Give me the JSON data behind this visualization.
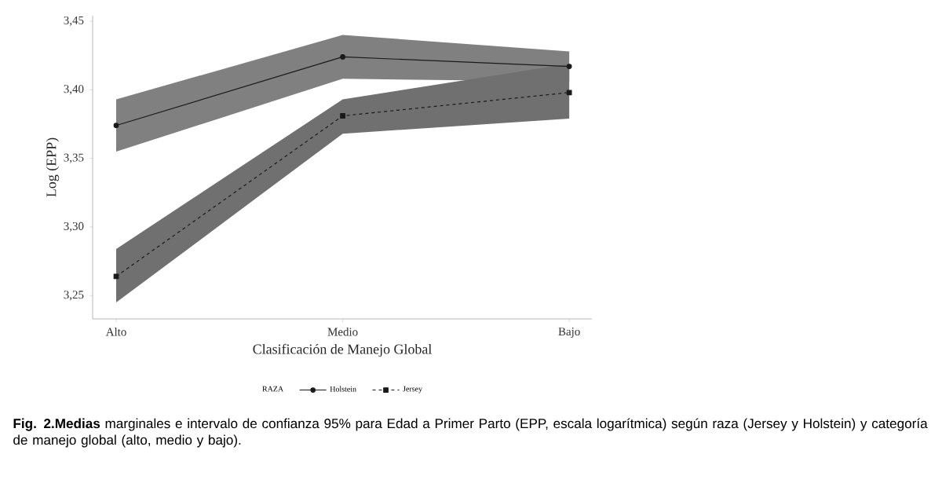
{
  "chart_data": {
    "type": "line",
    "xlabel": "Clasificación de Manejo Global",
    "ylabel": "Log (EPP)",
    "categories": [
      "Alto",
      "Medio",
      "Bajo"
    ],
    "ylim": [
      3.233,
      3.454
    ],
    "yticks": [
      {
        "value": 3.25,
        "label": "3,25"
      },
      {
        "value": 3.3,
        "label": "3,30"
      },
      {
        "value": 3.35,
        "label": "3,35"
      },
      {
        "value": 3.4,
        "label": "3,40"
      },
      {
        "value": 3.45,
        "label": "3,45"
      }
    ],
    "legend": "bottom",
    "legend_title": "RAZA",
    "grid": false,
    "series": [
      {
        "name": "Holstein",
        "color": "#1a1a1a",
        "marker": "circle",
        "line_style": "solid",
        "values": [
          3.374,
          3.424,
          3.417
        ],
        "lower": [
          3.355,
          3.408,
          3.406
        ],
        "upper": [
          3.393,
          3.44,
          3.428
        ]
      },
      {
        "name": "Jersey",
        "color": "#1a1a1a",
        "marker": "square",
        "line_style": "dashed",
        "values": [
          3.264,
          3.381,
          3.398
        ],
        "lower": [
          3.245,
          3.368,
          3.379
        ],
        "upper": [
          3.284,
          3.393,
          3.419
        ]
      }
    ],
    "annotations": [
      "**Fig. 2.Medias** marginales e intervalo de confianza 95% para Edad a Primer Parto (EPP, escala logarítmica) según raza (Jersey y Holstein) y categoría de manejo global (alto, medio y bajo)."
    ]
  }
}
